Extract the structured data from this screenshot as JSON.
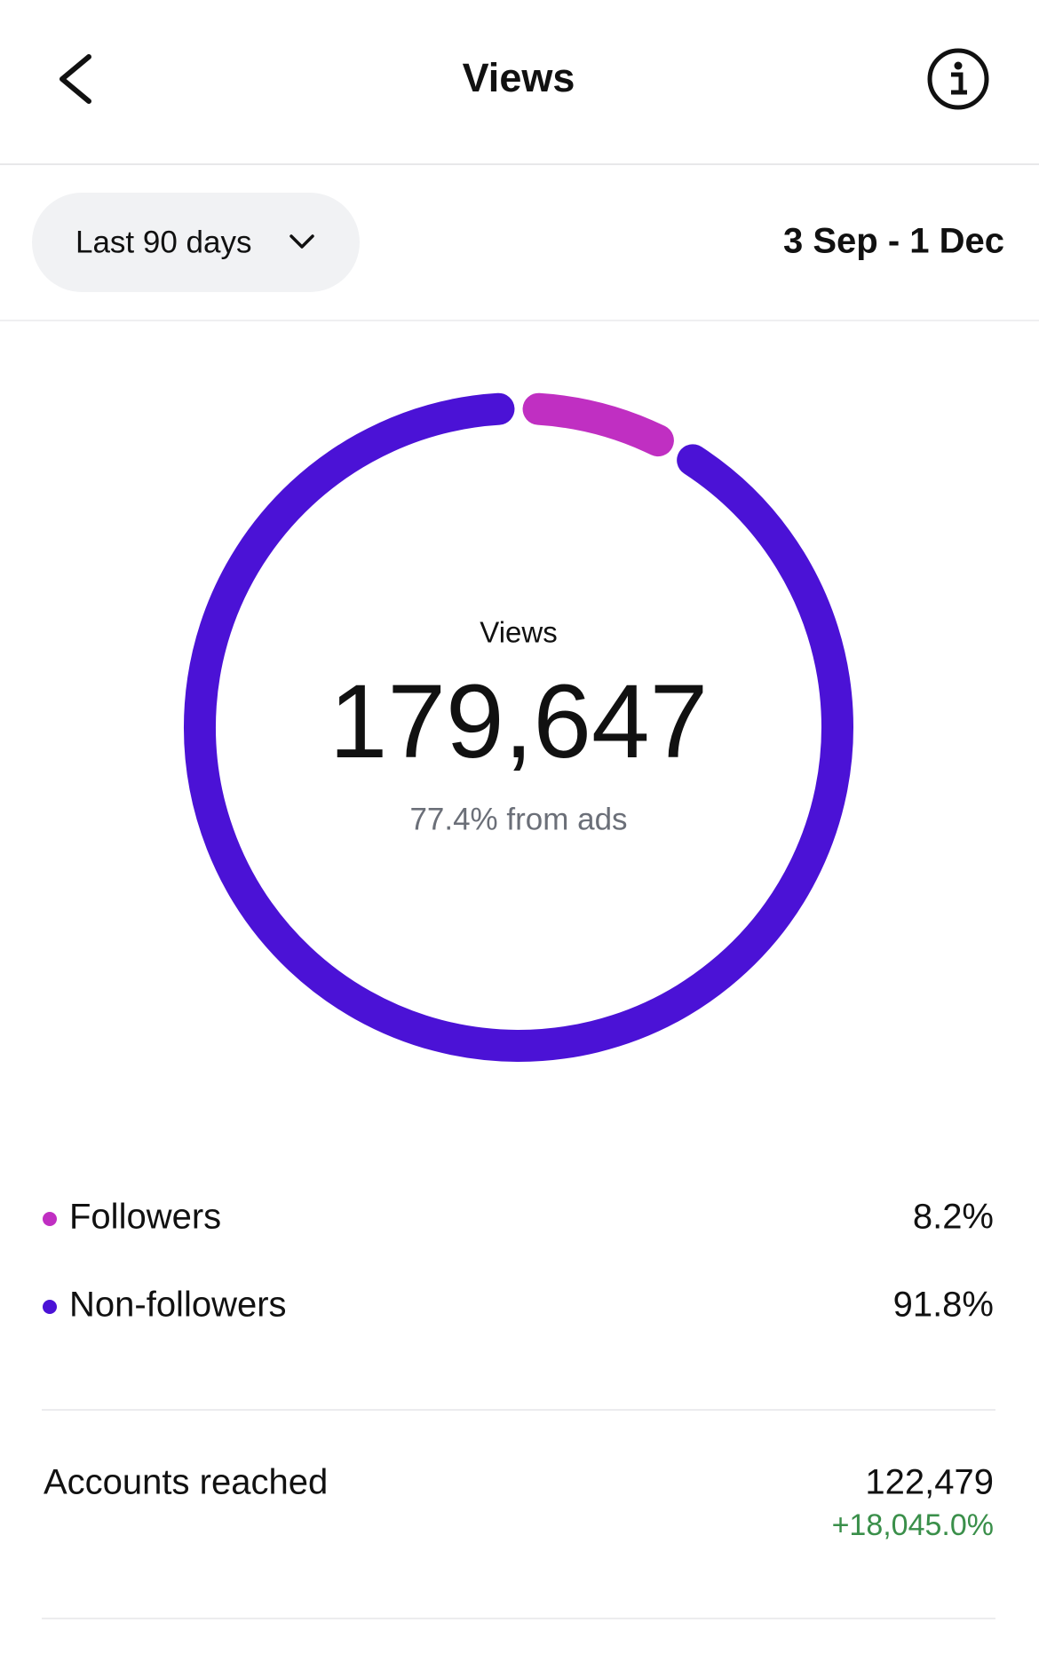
{
  "header": {
    "title": "Views"
  },
  "filter": {
    "label": "Last 90 days",
    "date_range": "3 Sep - 1 Dec"
  },
  "chart_data": {
    "type": "donut",
    "center_label": "Views",
    "center_value": "179,647",
    "center_note": "77.4% from ads",
    "categories": [
      "Followers",
      "Non-followers"
    ],
    "values": [
      8.2,
      91.8
    ],
    "value_labels": [
      "8.2%",
      "91.8%"
    ],
    "colors": [
      "#c02fc2",
      "#4b12d6"
    ]
  },
  "metrics": [
    {
      "label": "Accounts reached",
      "value": "122,479",
      "change": "+18,045.0%"
    }
  ]
}
